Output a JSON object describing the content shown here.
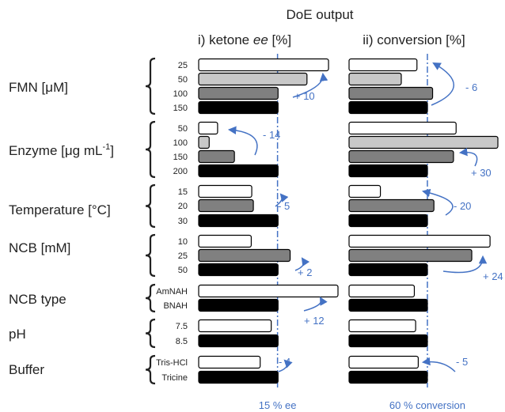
{
  "chart_data": {
    "type": "bar",
    "title": "DoE output",
    "panels": [
      {
        "title_prefix": "i) ketone ",
        "title_italic": "ee",
        "title_suffix": " [%]",
        "ref_value": 15,
        "ref_label": "15 % ee",
        "xlim": [
          0,
          28
        ]
      },
      {
        "title_prefix": "ii) conversion [%]",
        "title_italic": "",
        "title_suffix": "",
        "ref_value": 60,
        "ref_label": "60 % conversion",
        "xlim": [
          0,
          116
        ]
      }
    ],
    "groups": [
      {
        "name": "FMN [μM]",
        "levels": [
          "25",
          "50",
          "100",
          "150"
        ],
        "ee": [
          24.7,
          20.6,
          15.1,
          15.1
        ],
        "conversion": [
          52,
          40,
          64,
          60
        ],
        "ee_delta": "+ 10",
        "conversion_delta": "- 6"
      },
      {
        "name": "Enzyme [μg mL",
        "name_sup": "-1",
        "name_end": "]",
        "levels": [
          "50",
          "100",
          "150",
          "200"
        ],
        "ee": [
          3.6,
          2.0,
          6.8,
          15.1
        ],
        "conversion": [
          82,
          114,
          80,
          60
        ],
        "ee_delta": "- 14",
        "conversion_delta": "+ 30"
      },
      {
        "name": "Temperature [°C]",
        "levels": [
          "15",
          "20",
          "30"
        ],
        "ee": [
          10.1,
          10.4,
          15.1
        ],
        "conversion": [
          24,
          65,
          60
        ],
        "ee_delta": "- 5",
        "conversion_delta": "- 20"
      },
      {
        "name": "NCB [mM]",
        "levels": [
          "10",
          "25",
          "50"
        ],
        "ee": [
          10.0,
          17.4,
          15.1
        ],
        "conversion": [
          108,
          94,
          60
        ],
        "ee_delta": "+ 2",
        "conversion_delta": "+ 24"
      },
      {
        "name": "NCB type",
        "levels": [
          "AmNAH",
          "BNAH"
        ],
        "ee": [
          26.5,
          15.1
        ],
        "conversion": [
          50,
          60
        ],
        "ee_delta": "+ 12",
        "conversion_delta": ""
      },
      {
        "name": "pH",
        "levels": [
          "7.5",
          "8.5"
        ],
        "ee": [
          13.8,
          15.1
        ],
        "conversion": [
          51,
          60
        ],
        "ee_delta": "",
        "conversion_delta": ""
      },
      {
        "name": "Buffer",
        "levels": [
          "Tris-HCl",
          "Tricine"
        ],
        "ee": [
          11.7,
          15.1
        ],
        "conversion": [
          53,
          60
        ],
        "ee_delta": "- 4",
        "conversion_delta": "- 5"
      }
    ],
    "colors": {
      "white_fill": "#ffffff",
      "light_gray_fill": "#c8c8c8",
      "dark_gray_fill": "#808080",
      "black_fill": "#000000",
      "annotation": "#4472c4",
      "text": "#222222"
    }
  }
}
